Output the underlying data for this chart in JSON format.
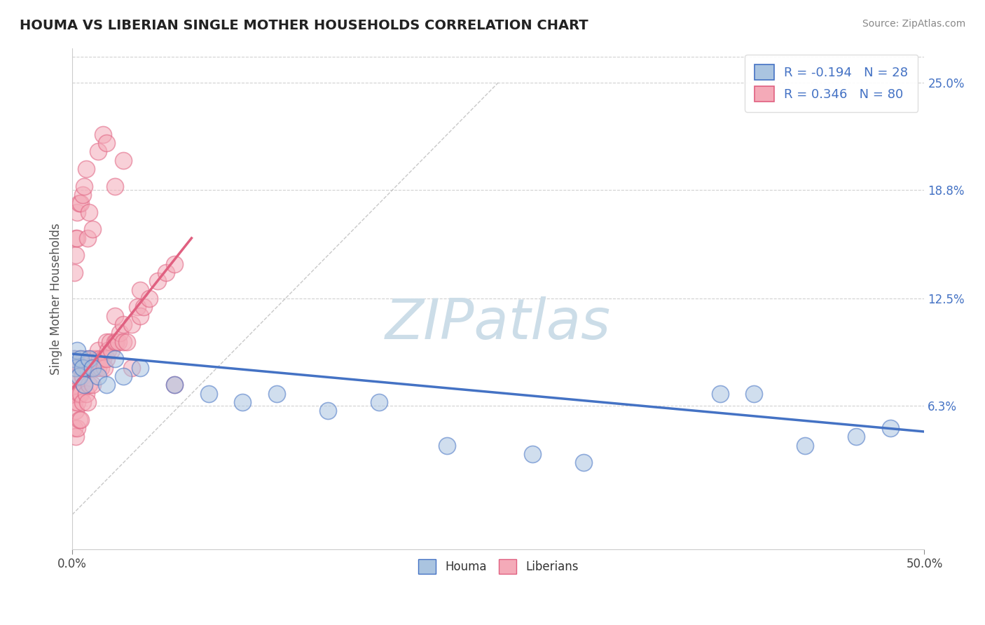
{
  "title": "HOUMA VS LIBERIAN SINGLE MOTHER HOUSEHOLDS CORRELATION CHART",
  "source_text": "Source: ZipAtlas.com",
  "ylabel": "Single Mother Households",
  "xlim": [
    0.0,
    0.5
  ],
  "ylim": [
    -0.02,
    0.27
  ],
  "xtick_positions": [
    0.0,
    0.5
  ],
  "xtick_labels": [
    "0.0%",
    "50.0%"
  ],
  "ytick_positions": [
    0.063,
    0.125,
    0.188,
    0.25
  ],
  "ytick_labels": [
    "6.3%",
    "12.5%",
    "18.8%",
    "25.0%"
  ],
  "houma_color": "#aac4e0",
  "houma_edge_color": "#4472c4",
  "houma_line_color": "#4472c4",
  "liberian_color": "#f4aab8",
  "liberian_edge_color": "#e06080",
  "liberian_line_color": "#e06080",
  "houma_R": -0.194,
  "houma_N": 28,
  "liberian_R": 0.346,
  "liberian_N": 80,
  "legend_labels": [
    "Houma",
    "Liberians"
  ],
  "watermark": "ZIPatlas",
  "watermark_color": "#ccdde8",
  "background_color": "#ffffff",
  "grid_color": "#cccccc",
  "houma_x": [
    0.001,
    0.002,
    0.003,
    0.004,
    0.005,
    0.006,
    0.007,
    0.01,
    0.012,
    0.015,
    0.02,
    0.025,
    0.03,
    0.04,
    0.06,
    0.08,
    0.1,
    0.12,
    0.15,
    0.18,
    0.22,
    0.27,
    0.3,
    0.38,
    0.4,
    0.43,
    0.46,
    0.48
  ],
  "houma_y": [
    0.09,
    0.085,
    0.095,
    0.08,
    0.09,
    0.085,
    0.075,
    0.09,
    0.085,
    0.08,
    0.075,
    0.09,
    0.08,
    0.085,
    0.075,
    0.07,
    0.065,
    0.07,
    0.06,
    0.065,
    0.04,
    0.035,
    0.03,
    0.07,
    0.07,
    0.04,
    0.045,
    0.05
  ],
  "liberian_x": [
    0.001,
    0.001,
    0.001,
    0.001,
    0.002,
    0.002,
    0.002,
    0.002,
    0.003,
    0.003,
    0.003,
    0.004,
    0.004,
    0.004,
    0.005,
    0.005,
    0.005,
    0.006,
    0.006,
    0.007,
    0.007,
    0.008,
    0.008,
    0.009,
    0.009,
    0.01,
    0.01,
    0.011,
    0.012,
    0.012,
    0.013,
    0.014,
    0.015,
    0.015,
    0.016,
    0.017,
    0.018,
    0.019,
    0.02,
    0.02,
    0.021,
    0.022,
    0.023,
    0.025,
    0.025,
    0.026,
    0.027,
    0.028,
    0.03,
    0.03,
    0.032,
    0.035,
    0.038,
    0.04,
    0.04,
    0.042,
    0.045,
    0.05,
    0.055,
    0.06,
    0.001,
    0.002,
    0.002,
    0.003,
    0.003,
    0.004,
    0.005,
    0.006,
    0.007,
    0.008,
    0.009,
    0.01,
    0.012,
    0.015,
    0.018,
    0.02,
    0.025,
    0.03,
    0.035,
    0.06
  ],
  "liberian_y": [
    0.09,
    0.075,
    0.065,
    0.05,
    0.085,
    0.07,
    0.06,
    0.045,
    0.08,
    0.065,
    0.05,
    0.09,
    0.07,
    0.055,
    0.085,
    0.07,
    0.055,
    0.08,
    0.065,
    0.09,
    0.075,
    0.085,
    0.07,
    0.085,
    0.065,
    0.09,
    0.075,
    0.085,
    0.09,
    0.075,
    0.085,
    0.09,
    0.085,
    0.095,
    0.09,
    0.085,
    0.09,
    0.085,
    0.09,
    0.1,
    0.095,
    0.1,
    0.095,
    0.1,
    0.115,
    0.1,
    0.1,
    0.105,
    0.1,
    0.11,
    0.1,
    0.11,
    0.12,
    0.115,
    0.13,
    0.12,
    0.125,
    0.135,
    0.14,
    0.145,
    0.14,
    0.16,
    0.15,
    0.175,
    0.16,
    0.18,
    0.18,
    0.185,
    0.19,
    0.2,
    0.16,
    0.175,
    0.165,
    0.21,
    0.22,
    0.215,
    0.19,
    0.205,
    0.085,
    0.075
  ],
  "houma_trend_x": [
    0.0,
    0.5
  ],
  "houma_trend_y": [
    0.093,
    0.048
  ],
  "liberian_trend_x": [
    0.0,
    0.07
  ],
  "liberian_trend_y": [
    0.073,
    0.16
  ]
}
